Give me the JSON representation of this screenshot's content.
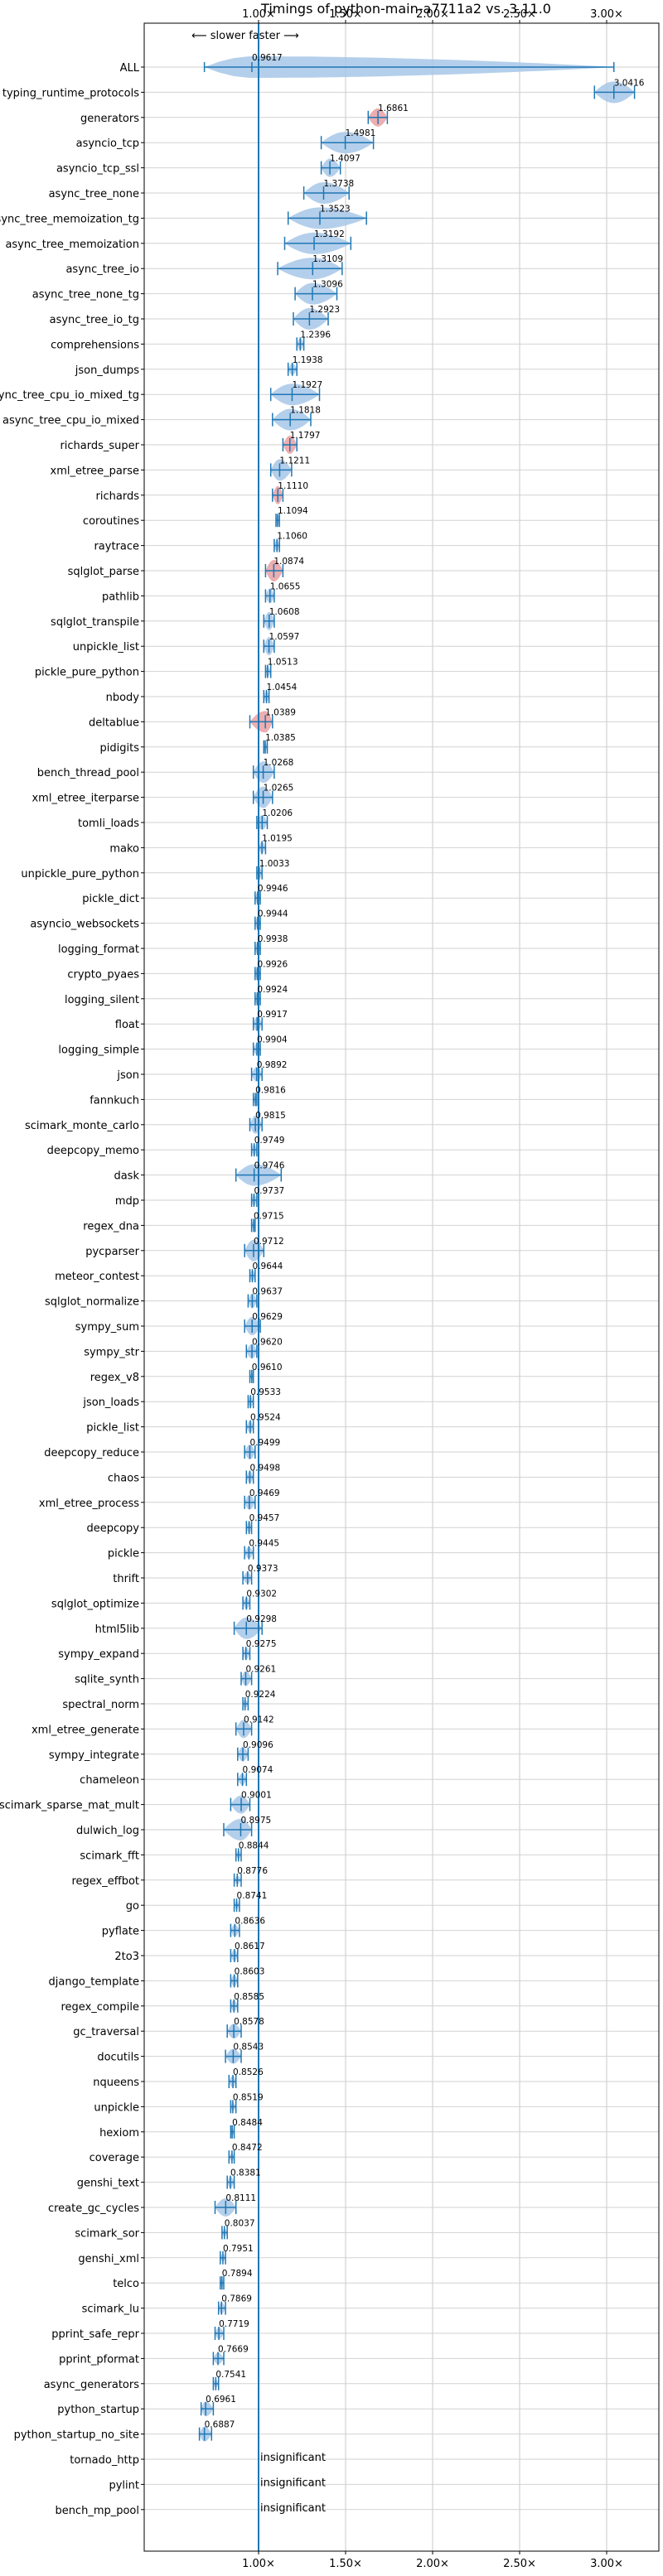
{
  "chart_data": {
    "type": "violin",
    "title": "Timings of python-main-a7711a2 vs. 3.11.0",
    "direction_label": "⟵ slower   faster ⟶",
    "x_ticks": [
      {
        "value": 1.0,
        "label": "1.00×"
      },
      {
        "value": 1.5,
        "label": "1.50×"
      },
      {
        "value": 2.0,
        "label": "2.00×"
      },
      {
        "value": 2.5,
        "label": "2.50×"
      },
      {
        "value": 3.0,
        "label": "3.00×"
      }
    ],
    "xlim": [
      0.55,
      3.3
    ],
    "reference_line": 1.0,
    "grid": true,
    "colors": {
      "faster": "#a7c7e7",
      "slower": "#e9a0a3",
      "line": "#1f77b4"
    },
    "insignificant_label": "insignificant",
    "benchmarks": [
      {
        "name": "ALL",
        "value": 0.9617,
        "label": "0.9617",
        "min": 0.6887,
        "max": 3.0416,
        "spread": 0.18
      },
      {
        "name": "typing_runtime_protocols",
        "value": 3.0416,
        "label": "3.0416",
        "min": 2.93,
        "max": 3.16,
        "spread": 0.08
      },
      {
        "name": "generators",
        "value": 1.6861,
        "label": "1.6861",
        "min": 1.63,
        "max": 1.74,
        "spread": 0.04
      },
      {
        "name": "asyncio_tcp",
        "value": 1.4981,
        "label": "1.4981",
        "min": 1.36,
        "max": 1.66,
        "spread": 0.11
      },
      {
        "name": "asyncio_tcp_ssl",
        "value": 1.4097,
        "label": "1.4097",
        "min": 1.36,
        "max": 1.47,
        "spread": 0.04
      },
      {
        "name": "async_tree_none",
        "value": 1.3738,
        "label": "1.3738",
        "min": 1.26,
        "max": 1.52,
        "spread": 0.1
      },
      {
        "name": "async_tree_memoization_tg",
        "value": 1.3523,
        "label": "1.3523",
        "min": 1.17,
        "max": 1.62,
        "spread": 0.12
      },
      {
        "name": "async_tree_memoization",
        "value": 1.3192,
        "label": "1.3192",
        "min": 1.15,
        "max": 1.53,
        "spread": 0.1
      },
      {
        "name": "async_tree_io",
        "value": 1.3109,
        "label": "1.3109",
        "min": 1.11,
        "max": 1.48,
        "spread": 0.12
      },
      {
        "name": "async_tree_none_tg",
        "value": 1.3096,
        "label": "1.3096",
        "min": 1.21,
        "max": 1.45,
        "spread": 0.09
      },
      {
        "name": "async_tree_io_tg",
        "value": 1.2923,
        "label": "1.2923",
        "min": 1.2,
        "max": 1.4,
        "spread": 0.08
      },
      {
        "name": "comprehensions",
        "value": 1.2396,
        "label": "1.2396",
        "min": 1.22,
        "max": 1.26,
        "spread": 0.02
      },
      {
        "name": "json_dumps",
        "value": 1.1938,
        "label": "1.1938",
        "min": 1.17,
        "max": 1.22,
        "spread": 0.02
      },
      {
        "name": "async_tree_cpu_io_mixed_tg",
        "value": 1.1927,
        "label": "1.1927",
        "min": 1.07,
        "max": 1.35,
        "spread": 0.1
      },
      {
        "name": "async_tree_cpu_io_mixed",
        "value": 1.1818,
        "label": "1.1818",
        "min": 1.08,
        "max": 1.3,
        "spread": 0.08
      },
      {
        "name": "richards_super",
        "value": 1.1797,
        "label": "1.1797",
        "min": 1.14,
        "max": 1.22,
        "spread": 0.04
      },
      {
        "name": "xml_etree_parse",
        "value": 1.1211,
        "label": "1.1211",
        "min": 1.07,
        "max": 1.19,
        "spread": 0.06
      },
      {
        "name": "richards",
        "value": 1.111,
        "label": "1.1110",
        "min": 1.08,
        "max": 1.14,
        "spread": 0.04
      },
      {
        "name": "coroutines",
        "value": 1.1094,
        "label": "1.1094",
        "min": 1.1,
        "max": 1.12,
        "spread": 0.02
      },
      {
        "name": "raytrace",
        "value": 1.106,
        "label": "1.1060",
        "min": 1.09,
        "max": 1.12,
        "spread": 0.02
      },
      {
        "name": "sqlglot_parse",
        "value": 1.0874,
        "label": "1.0874",
        "min": 1.04,
        "max": 1.14,
        "spread": 0.06
      },
      {
        "name": "pathlib",
        "value": 1.0655,
        "label": "1.0655",
        "min": 1.04,
        "max": 1.09,
        "spread": 0.03
      },
      {
        "name": "sqlglot_transpile",
        "value": 1.0608,
        "label": "1.0608",
        "min": 1.03,
        "max": 1.09,
        "spread": 0.04
      },
      {
        "name": "unpickle_list",
        "value": 1.0597,
        "label": "1.0597",
        "min": 1.03,
        "max": 1.09,
        "spread": 0.04
      },
      {
        "name": "pickle_pure_python",
        "value": 1.0513,
        "label": "1.0513",
        "min": 1.04,
        "max": 1.07,
        "spread": 0.02
      },
      {
        "name": "nbody",
        "value": 1.0454,
        "label": "1.0454",
        "min": 1.03,
        "max": 1.06,
        "spread": 0.02
      },
      {
        "name": "deltablue",
        "value": 1.0389,
        "label": "1.0389",
        "min": 0.95,
        "max": 1.08,
        "spread": 0.05
      },
      {
        "name": "pidigits",
        "value": 1.0385,
        "label": "1.0385",
        "min": 1.03,
        "max": 1.05,
        "spread": 0.01
      },
      {
        "name": "bench_thread_pool",
        "value": 1.0268,
        "label": "1.0268",
        "min": 0.97,
        "max": 1.09,
        "spread": 0.05
      },
      {
        "name": "xml_etree_iterparse",
        "value": 1.0265,
        "label": "1.0265",
        "min": 0.97,
        "max": 1.08,
        "spread": 0.05
      },
      {
        "name": "tomli_loads",
        "value": 1.0206,
        "label": "1.0206",
        "min": 0.99,
        "max": 1.05,
        "spread": 0.03
      },
      {
        "name": "mako",
        "value": 1.0195,
        "label": "1.0195",
        "min": 1.0,
        "max": 1.04,
        "spread": 0.02
      },
      {
        "name": "unpickle_pure_python",
        "value": 1.0033,
        "label": "1.0033",
        "min": 0.99,
        "max": 1.02,
        "spread": 0.02
      },
      {
        "name": "pickle_dict",
        "value": 0.9946,
        "label": "0.9946",
        "min": 0.98,
        "max": 1.01,
        "spread": 0.02
      },
      {
        "name": "asyncio_websockets",
        "value": 0.9944,
        "label": "0.9944",
        "min": 0.98,
        "max": 1.01,
        "spread": 0.02
      },
      {
        "name": "logging_format",
        "value": 0.9938,
        "label": "0.9938",
        "min": 0.98,
        "max": 1.01,
        "spread": 0.02
      },
      {
        "name": "crypto_pyaes",
        "value": 0.9926,
        "label": "0.9926",
        "min": 0.98,
        "max": 1.01,
        "spread": 0.02
      },
      {
        "name": "logging_silent",
        "value": 0.9924,
        "label": "0.9924",
        "min": 0.98,
        "max": 1.01,
        "spread": 0.02
      },
      {
        "name": "float",
        "value": 0.9917,
        "label": "0.9917",
        "min": 0.97,
        "max": 1.02,
        "spread": 0.03
      },
      {
        "name": "logging_simple",
        "value": 0.9904,
        "label": "0.9904",
        "min": 0.97,
        "max": 1.01,
        "spread": 0.02
      },
      {
        "name": "json",
        "value": 0.9892,
        "label": "0.9892",
        "min": 0.96,
        "max": 1.02,
        "spread": 0.03
      },
      {
        "name": "fannkuch",
        "value": 0.9816,
        "label": "0.9816",
        "min": 0.97,
        "max": 0.99,
        "spread": 0.01
      },
      {
        "name": "scimark_monte_carlo",
        "value": 0.9815,
        "label": "0.9815",
        "min": 0.95,
        "max": 1.02,
        "spread": 0.04
      },
      {
        "name": "deepcopy_memo",
        "value": 0.9749,
        "label": "0.9749",
        "min": 0.96,
        "max": 0.99,
        "spread": 0.02
      },
      {
        "name": "dask",
        "value": 0.9746,
        "label": "0.9746",
        "min": 0.87,
        "max": 1.13,
        "spread": 0.06
      },
      {
        "name": "mdp",
        "value": 0.9737,
        "label": "0.9737",
        "min": 0.96,
        "max": 0.99,
        "spread": 0.02
      },
      {
        "name": "regex_dna",
        "value": 0.9715,
        "label": "0.9715",
        "min": 0.96,
        "max": 0.98,
        "spread": 0.01
      },
      {
        "name": "pycparser",
        "value": 0.9712,
        "label": "0.9712",
        "min": 0.92,
        "max": 1.03,
        "spread": 0.06
      },
      {
        "name": "meteor_contest",
        "value": 0.9644,
        "label": "0.9644",
        "min": 0.95,
        "max": 0.98,
        "spread": 0.02
      },
      {
        "name": "sqlglot_normalize",
        "value": 0.9637,
        "label": "0.9637",
        "min": 0.94,
        "max": 0.99,
        "spread": 0.03
      },
      {
        "name": "sympy_sum",
        "value": 0.9629,
        "label": "0.9629",
        "min": 0.92,
        "max": 1.01,
        "spread": 0.04
      },
      {
        "name": "sympy_str",
        "value": 0.962,
        "label": "0.9620",
        "min": 0.93,
        "max": 0.99,
        "spread": 0.03
      },
      {
        "name": "regex_v8",
        "value": 0.961,
        "label": "0.9610",
        "min": 0.95,
        "max": 0.97,
        "spread": 0.01
      },
      {
        "name": "json_loads",
        "value": 0.9533,
        "label": "0.9533",
        "min": 0.94,
        "max": 0.97,
        "spread": 0.02
      },
      {
        "name": "pickle_list",
        "value": 0.9524,
        "label": "0.9524",
        "min": 0.93,
        "max": 0.97,
        "spread": 0.02
      },
      {
        "name": "deepcopy_reduce",
        "value": 0.9499,
        "label": "0.9499",
        "min": 0.92,
        "max": 0.98,
        "spread": 0.03
      },
      {
        "name": "chaos",
        "value": 0.9498,
        "label": "0.9498",
        "min": 0.93,
        "max": 0.97,
        "spread": 0.02
      },
      {
        "name": "xml_etree_process",
        "value": 0.9469,
        "label": "0.9469",
        "min": 0.92,
        "max": 0.98,
        "spread": 0.03
      },
      {
        "name": "deepcopy",
        "value": 0.9457,
        "label": "0.9457",
        "min": 0.93,
        "max": 0.96,
        "spread": 0.02
      },
      {
        "name": "pickle",
        "value": 0.9445,
        "label": "0.9445",
        "min": 0.92,
        "max": 0.97,
        "spread": 0.02
      },
      {
        "name": "thrift",
        "value": 0.9373,
        "label": "0.9373",
        "min": 0.91,
        "max": 0.96,
        "spread": 0.02
      },
      {
        "name": "sqlglot_optimize",
        "value": 0.9302,
        "label": "0.9302",
        "min": 0.91,
        "max": 0.95,
        "spread": 0.02
      },
      {
        "name": "html5lib",
        "value": 0.9298,
        "label": "0.9298",
        "min": 0.86,
        "max": 1.02,
        "spread": 0.05
      },
      {
        "name": "sympy_expand",
        "value": 0.9275,
        "label": "0.9275",
        "min": 0.91,
        "max": 0.95,
        "spread": 0.02
      },
      {
        "name": "sqlite_synth",
        "value": 0.9261,
        "label": "0.9261",
        "min": 0.9,
        "max": 0.96,
        "spread": 0.03
      },
      {
        "name": "spectral_norm",
        "value": 0.9224,
        "label": "0.9224",
        "min": 0.91,
        "max": 0.94,
        "spread": 0.01
      },
      {
        "name": "xml_etree_generate",
        "value": 0.9142,
        "label": "0.9142",
        "min": 0.87,
        "max": 0.96,
        "spread": 0.04
      },
      {
        "name": "sympy_integrate",
        "value": 0.9096,
        "label": "0.9096",
        "min": 0.88,
        "max": 0.94,
        "spread": 0.03
      },
      {
        "name": "chameleon",
        "value": 0.9074,
        "label": "0.9074",
        "min": 0.88,
        "max": 0.93,
        "spread": 0.02
      },
      {
        "name": "scimark_sparse_mat_mult",
        "value": 0.9001,
        "label": "0.9001",
        "min": 0.84,
        "max": 0.95,
        "spread": 0.04
      },
      {
        "name": "dulwich_log",
        "value": 0.8975,
        "label": "0.8975",
        "min": 0.8,
        "max": 0.96,
        "spread": 0.05
      },
      {
        "name": "scimark_fft",
        "value": 0.8844,
        "label": "0.8844",
        "min": 0.87,
        "max": 0.9,
        "spread": 0.01
      },
      {
        "name": "regex_effbot",
        "value": 0.8776,
        "label": "0.8776",
        "min": 0.86,
        "max": 0.9,
        "spread": 0.01
      },
      {
        "name": "go",
        "value": 0.8741,
        "label": "0.8741",
        "min": 0.86,
        "max": 0.89,
        "spread": 0.01
      },
      {
        "name": "pyflate",
        "value": 0.8636,
        "label": "0.8636",
        "min": 0.84,
        "max": 0.89,
        "spread": 0.02
      },
      {
        "name": "2to3",
        "value": 0.8617,
        "label": "0.8617",
        "min": 0.84,
        "max": 0.88,
        "spread": 0.02
      },
      {
        "name": "django_template",
        "value": 0.8603,
        "label": "0.8603",
        "min": 0.84,
        "max": 0.88,
        "spread": 0.02
      },
      {
        "name": "regex_compile",
        "value": 0.8585,
        "label": "0.8585",
        "min": 0.84,
        "max": 0.88,
        "spread": 0.02
      },
      {
        "name": "gc_traversal",
        "value": 0.8578,
        "label": "0.8578",
        "min": 0.82,
        "max": 0.9,
        "spread": 0.03
      },
      {
        "name": "docutils",
        "value": 0.8543,
        "label": "0.8543",
        "min": 0.81,
        "max": 0.9,
        "spread": 0.03
      },
      {
        "name": "nqueens",
        "value": 0.8526,
        "label": "0.8526",
        "min": 0.83,
        "max": 0.87,
        "spread": 0.02
      },
      {
        "name": "unpickle",
        "value": 0.8519,
        "label": "0.8519",
        "min": 0.84,
        "max": 0.87,
        "spread": 0.01
      },
      {
        "name": "hexiom",
        "value": 0.8484,
        "label": "0.8484",
        "min": 0.84,
        "max": 0.86,
        "spread": 0.01
      },
      {
        "name": "coverage",
        "value": 0.8472,
        "label": "0.8472",
        "min": 0.83,
        "max": 0.86,
        "spread": 0.01
      },
      {
        "name": "genshi_text",
        "value": 0.8381,
        "label": "0.8381",
        "min": 0.82,
        "max": 0.86,
        "spread": 0.02
      },
      {
        "name": "create_gc_cycles",
        "value": 0.8111,
        "label": "0.8111",
        "min": 0.75,
        "max": 0.87,
        "spread": 0.04
      },
      {
        "name": "scimark_sor",
        "value": 0.8037,
        "label": "0.8037",
        "min": 0.79,
        "max": 0.82,
        "spread": 0.01
      },
      {
        "name": "genshi_xml",
        "value": 0.7951,
        "label": "0.7951",
        "min": 0.78,
        "max": 0.81,
        "spread": 0.01
      },
      {
        "name": "telco",
        "value": 0.7894,
        "label": "0.7894",
        "min": 0.78,
        "max": 0.8,
        "spread": 0.01
      },
      {
        "name": "scimark_lu",
        "value": 0.7869,
        "label": "0.7869",
        "min": 0.77,
        "max": 0.81,
        "spread": 0.02
      },
      {
        "name": "pprint_safe_repr",
        "value": 0.7719,
        "label": "0.7719",
        "min": 0.75,
        "max": 0.8,
        "spread": 0.02
      },
      {
        "name": "pprint_pformat",
        "value": 0.7669,
        "label": "0.7669",
        "min": 0.74,
        "max": 0.8,
        "spread": 0.02
      },
      {
        "name": "async_generators",
        "value": 0.7541,
        "label": "0.7541",
        "min": 0.74,
        "max": 0.77,
        "spread": 0.01
      },
      {
        "name": "python_startup",
        "value": 0.6961,
        "label": "0.6961",
        "min": 0.67,
        "max": 0.74,
        "spread": 0.03
      },
      {
        "name": "python_startup_no_site",
        "value": 0.6887,
        "label": "0.6887",
        "min": 0.66,
        "max": 0.73,
        "spread": 0.03
      },
      {
        "name": "tornado_http",
        "insignificant": true
      },
      {
        "name": "pylint",
        "insignificant": true
      },
      {
        "name": "bench_mp_pool",
        "insignificant": true
      }
    ]
  }
}
